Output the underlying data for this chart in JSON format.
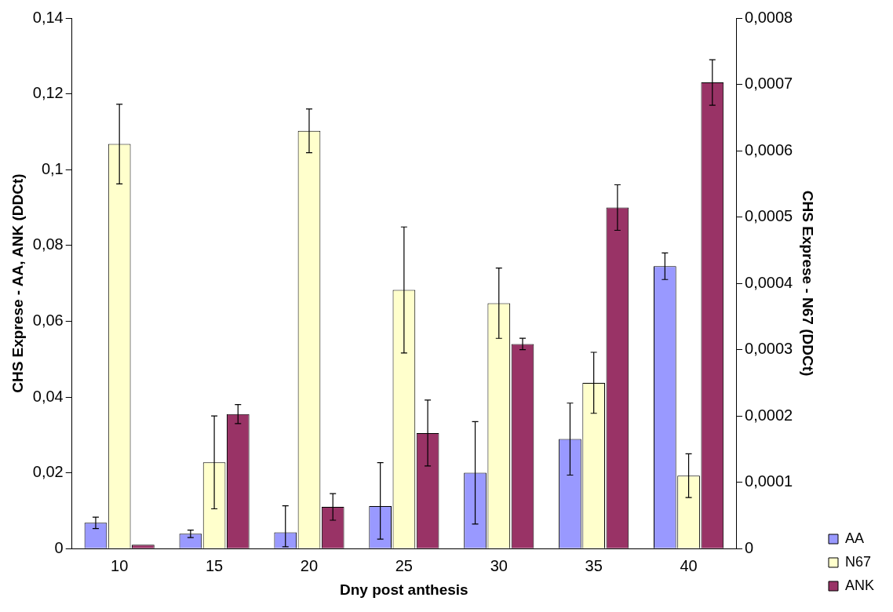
{
  "chart_data": {
    "type": "bar",
    "xlabel": "Dny post anthesis",
    "ylabel": "CHS Exprese - AA, ANK (DDCt)",
    "y2label": "CHS Exprese - N67 (DDCt)",
    "categories": [
      "10",
      "15",
      "20",
      "25",
      "30",
      "35",
      "40"
    ],
    "series": [
      {
        "name": "AA",
        "color": "#9999ff",
        "values": [
          0.0068,
          0.0039,
          0.0043,
          0.0112,
          0.02,
          0.0289,
          0.0745
        ],
        "errors": [
          0.0015,
          0.001,
          [
            0.0005,
            0.0113
          ],
          [
            0.0025,
            0.0227
          ],
          0.0135,
          0.0095,
          0.0035
        ]
      },
      {
        "name": "N67",
        "color": "#ffffcc",
        "axis": "y2",
        "values": [
          0.00061,
          0.00013,
          0.00063,
          0.00039,
          0.00037,
          0.00025,
          0.00011
        ],
        "errors": [
          6e-05,
          7e-05,
          3.3e-05,
          9.5e-05,
          5.3e-05,
          4.6e-05,
          3.3e-05
        ]
      },
      {
        "name": "ANK",
        "color": "#993366",
        "values": [
          0.001,
          0.0355,
          0.011,
          0.0305,
          0.054,
          0.09,
          0.123
        ],
        "errors": [
          null,
          0.0025,
          0.0035,
          0.0087,
          0.0015,
          0.006,
          0.006
        ]
      }
    ],
    "ylim": [
      0,
      0.14
    ],
    "yticks": [
      {
        "value": 0,
        "label": "0"
      },
      {
        "value": 0.02,
        "label": "0,02"
      },
      {
        "value": 0.04,
        "label": "0,04"
      },
      {
        "value": 0.06,
        "label": "0,06"
      },
      {
        "value": 0.08,
        "label": "0,08"
      },
      {
        "value": 0.1,
        "label": "0,1"
      },
      {
        "value": 0.12,
        "label": "0,12"
      },
      {
        "value": 0.14,
        "label": "0,14"
      }
    ],
    "y2lim": [
      0,
      0.0008
    ],
    "y2ticks": [
      {
        "value": 0,
        "label": "0"
      },
      {
        "value": 0.0001,
        "label": "0,0001"
      },
      {
        "value": 0.0002,
        "label": "0,0002"
      },
      {
        "value": 0.0003,
        "label": "0,0003"
      },
      {
        "value": 0.0004,
        "label": "0,0004"
      },
      {
        "value": 0.0005,
        "label": "0,0005"
      },
      {
        "value": 0.0006,
        "label": "0,0006"
      },
      {
        "value": 0.0007,
        "label": "0,0007"
      },
      {
        "value": 0.0008,
        "label": "0,0008"
      }
    ],
    "legend": "bottom right",
    "grid": false
  }
}
